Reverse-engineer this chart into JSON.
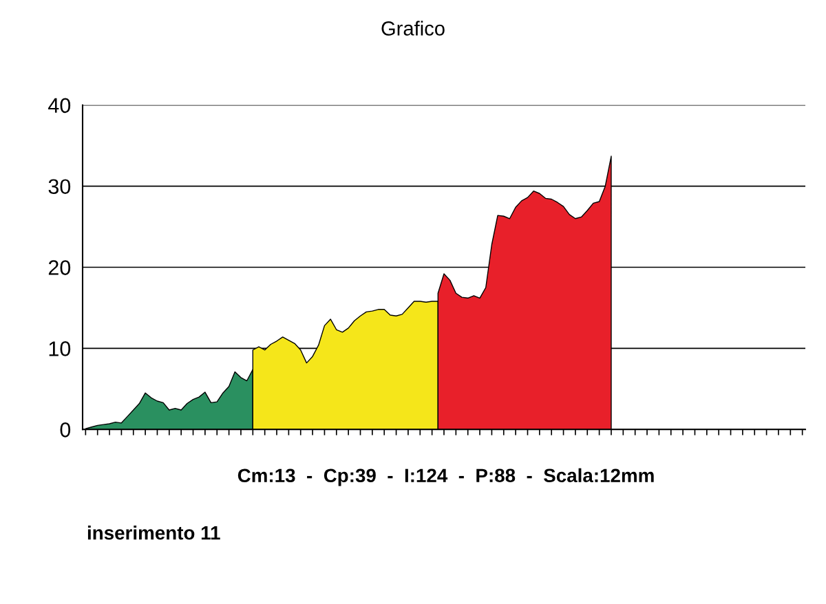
{
  "chart_data": {
    "type": "area",
    "title": "Grafico",
    "categories": [
      null,
      null,
      null,
      null,
      null,
      null,
      null,
      null,
      null,
      null,
      null,
      null,
      null,
      null,
      null,
      null,
      null,
      null,
      null,
      null,
      null,
      null,
      null,
      null,
      null,
      null,
      null,
      null,
      null,
      null,
      null,
      null,
      null,
      null,
      null,
      null,
      null,
      null,
      null,
      null,
      null,
      null,
      null,
      null,
      null,
      null,
      null,
      null,
      null,
      null,
      null,
      null,
      null,
      null,
      null,
      null,
      null,
      null,
      null,
      null,
      null,
      null,
      null,
      null,
      null,
      null,
      null,
      null,
      null,
      null,
      null,
      null,
      null,
      null,
      null,
      null,
      null,
      null,
      null,
      null,
      null,
      null,
      null,
      null,
      null,
      null,
      null,
      null,
      null,
      null,
      null,
      null,
      null,
      null,
      null,
      null,
      null,
      null,
      null,
      null,
      null,
      null,
      null,
      null,
      null,
      null,
      null,
      null,
      null,
      null,
      null,
      null,
      null,
      null,
      null,
      null,
      null,
      null,
      null,
      null,
      null
    ],
    "series": [
      {
        "color": "#2a9060",
        "values": [
          0.1,
          0.3,
          0.5,
          0.6,
          0.7,
          0.9,
          0.8,
          1.6,
          2.4,
          3.2,
          4.5,
          3.9,
          3.5,
          3.3,
          2.4,
          2.6,
          2.4,
          3.2,
          3.7,
          4.0,
          4.6,
          3.3,
          3.4,
          4.5,
          5.3,
          7.1,
          6.4,
          6.0,
          7.4,
          null,
          null,
          null,
          null,
          null,
          null,
          null,
          null,
          null,
          null,
          null,
          null,
          null,
          null,
          null,
          null,
          null,
          null,
          null,
          null,
          null,
          null,
          null,
          null,
          null,
          null,
          null,
          null,
          null,
          null,
          null,
          null,
          null,
          null,
          null,
          null,
          null,
          null,
          null,
          null,
          null,
          null,
          null,
          null,
          null,
          null,
          null,
          null,
          null,
          null,
          null,
          null,
          null,
          null,
          null,
          null,
          null,
          null,
          null,
          null,
          null,
          null,
          null,
          null,
          null,
          null,
          null,
          null,
          null,
          null,
          null,
          null,
          null,
          null,
          null,
          null,
          null,
          null,
          null,
          null,
          null,
          null,
          null,
          null,
          null,
          null,
          null,
          null,
          null,
          null,
          null,
          null
        ]
      },
      {
        "color": "#f5e61a",
        "values": [
          null,
          null,
          null,
          null,
          null,
          null,
          null,
          null,
          null,
          null,
          null,
          null,
          null,
          null,
          null,
          null,
          null,
          null,
          null,
          null,
          null,
          null,
          null,
          null,
          null,
          null,
          null,
          null,
          9.8,
          10.2,
          9.8,
          10.5,
          10.9,
          11.4,
          11.0,
          10.6,
          9.8,
          8.2,
          9.0,
          10.4,
          12.8,
          13.6,
          12.3,
          12.0,
          12.5,
          13.4,
          14.0,
          14.5,
          14.6,
          14.8,
          14.8,
          14.1,
          14.0,
          14.2,
          15.0,
          15.8,
          15.8,
          15.7,
          15.8,
          15.8,
          null,
          null,
          null,
          null,
          null,
          null,
          null,
          null,
          null,
          null,
          null,
          null,
          null,
          null,
          null,
          null,
          null,
          null,
          null,
          null,
          null,
          null,
          null,
          null,
          null,
          null,
          null,
          null,
          null,
          null,
          null,
          null,
          null,
          null,
          null,
          null,
          null,
          null,
          null,
          null,
          null,
          null,
          null,
          null,
          null,
          null,
          null,
          null,
          null,
          null,
          null,
          null,
          null,
          null,
          null,
          null,
          null,
          null,
          null,
          null,
          null
        ]
      },
      {
        "color": "#e8202a",
        "values": [
          null,
          null,
          null,
          null,
          null,
          null,
          null,
          null,
          null,
          null,
          null,
          null,
          null,
          null,
          null,
          null,
          null,
          null,
          null,
          null,
          null,
          null,
          null,
          null,
          null,
          null,
          null,
          null,
          null,
          null,
          null,
          null,
          null,
          null,
          null,
          null,
          null,
          null,
          null,
          null,
          null,
          null,
          null,
          null,
          null,
          null,
          null,
          null,
          null,
          null,
          null,
          null,
          null,
          null,
          null,
          null,
          null,
          null,
          null,
          16.8,
          19.2,
          18.4,
          16.8,
          16.3,
          16.2,
          16.5,
          16.2,
          17.5,
          22.8,
          26.4,
          26.3,
          26.0,
          27.4,
          28.2,
          28.6,
          29.4,
          29.1,
          28.5,
          28.4,
          28.0,
          27.5,
          26.5,
          26.0,
          26.2,
          27.0,
          27.9,
          28.1,
          30.0,
          33.7,
          null,
          null,
          null,
          null,
          null,
          null,
          null,
          null,
          null,
          null,
          null,
          null,
          null,
          null,
          null,
          null,
          null,
          null,
          null,
          null,
          null,
          null,
          null,
          null,
          null,
          null,
          null,
          null,
          null,
          null,
          null,
          null
        ]
      }
    ],
    "ylim": [
      0,
      40
    ],
    "yticks": [
      0,
      10,
      20,
      30,
      40
    ],
    "grid": "y",
    "legend": false,
    "annotations": [
      "Cm:13  -  Cp:39  -  I:124  -  P:88  -  Scala:12mm",
      "inserimento 11"
    ]
  }
}
